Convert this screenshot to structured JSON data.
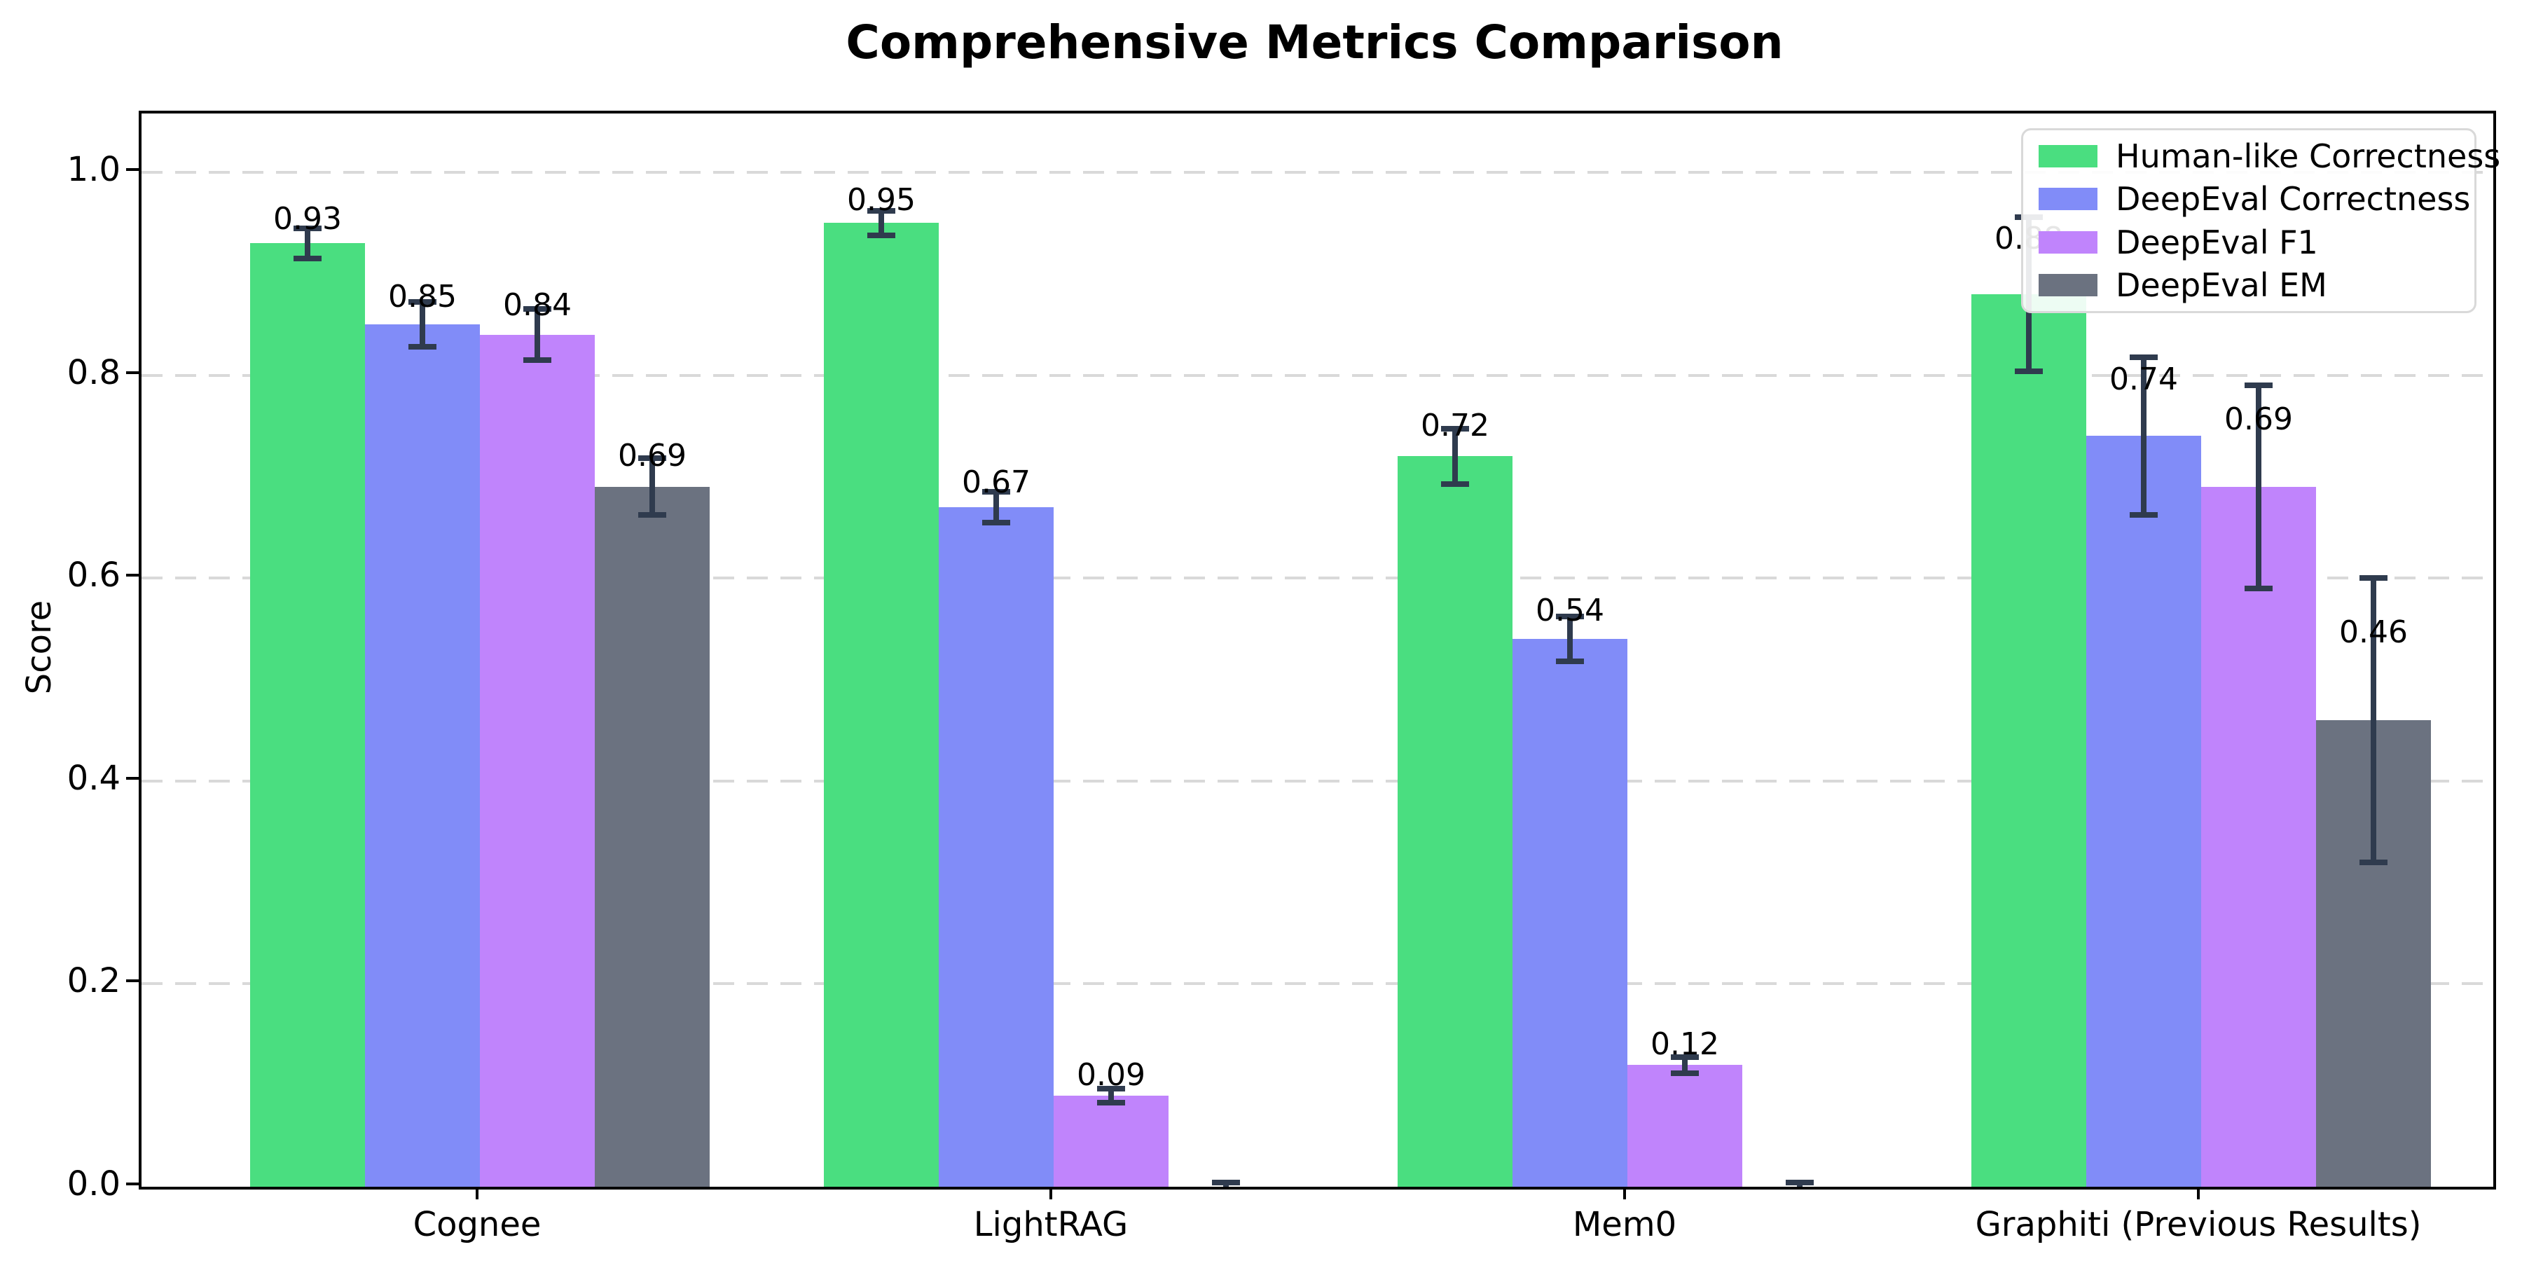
{
  "chart_data": {
    "type": "bar",
    "title": "Comprehensive Metrics Comparison",
    "xlabel": "",
    "ylabel": "Score",
    "ylim": [
      0.0,
      1.058
    ],
    "yticks": [
      0.0,
      0.2,
      0.4,
      0.6,
      0.8,
      1.0
    ],
    "ytick_labels": [
      "0.0",
      "0.2",
      "0.4",
      "0.6",
      "0.8",
      "1.0"
    ],
    "grid": "horizontal-dashed",
    "grid_color": "#d9d9d9",
    "axis_color": "#000000",
    "error_bar_color": "#2f3b4e",
    "legend_position": "upper right",
    "categories": [
      "Cognee",
      "LightRAG",
      "Mem0",
      "Graphiti (Previous Results)"
    ],
    "series": [
      {
        "name": "Human-like Correctness",
        "color": "#4ade80",
        "values": [
          0.93,
          0.95,
          0.72,
          0.88
        ],
        "errors": [
          0.015,
          0.012,
          0.027,
          0.076
        ],
        "labels": [
          "0.93",
          "0.95",
          "0.72",
          "0.88"
        ]
      },
      {
        "name": "DeepEval Correctness",
        "color": "#818cf8",
        "values": [
          0.85,
          0.67,
          0.54,
          0.74
        ],
        "errors": [
          0.022,
          0.015,
          0.022,
          0.078
        ],
        "labels": [
          "0.85",
          "0.67",
          "0.54",
          "0.74"
        ]
      },
      {
        "name": "DeepEval F1",
        "color": "#c084fc",
        "values": [
          0.84,
          0.09,
          0.12,
          0.69
        ],
        "errors": [
          0.025,
          0.007,
          0.008,
          0.1
        ],
        "labels": [
          "0.84",
          "0.09",
          "0.12",
          "0.69"
        ]
      },
      {
        "name": "DeepEval EM",
        "color": "#6b7280",
        "values": [
          0.69,
          0.0,
          0.0,
          0.46
        ],
        "errors": [
          0.028,
          0.004,
          0.004,
          0.14
        ],
        "labels": [
          "0.69",
          null,
          null,
          "0.46"
        ]
      }
    ]
  }
}
